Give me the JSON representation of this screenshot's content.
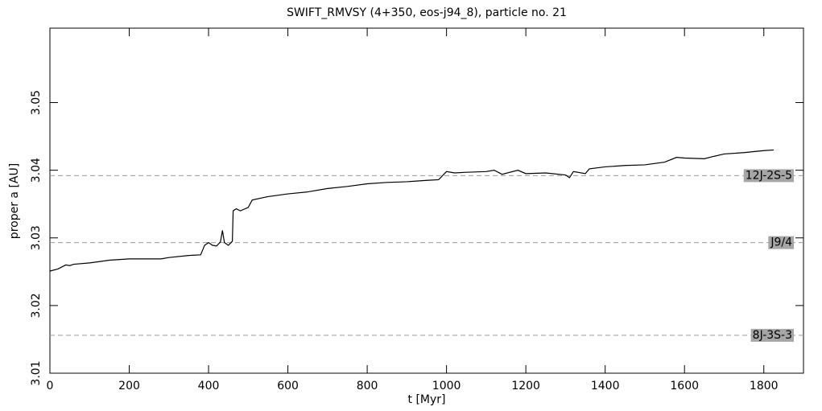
{
  "chart_data": {
    "type": "line",
    "title": "SWIFT_RMVSY (4+350, eos-j94_8), particle no. 21",
    "xlabel": "t [Myr]",
    "ylabel": "proper a [AU]",
    "x": [
      0,
      20,
      40,
      50,
      60,
      100,
      150,
      200,
      250,
      280,
      300,
      350,
      380,
      390,
      400,
      410,
      420,
      430,
      435,
      440,
      450,
      460,
      462,
      470,
      480,
      500,
      510,
      550,
      600,
      650,
      700,
      750,
      800,
      850,
      900,
      950,
      980,
      1000,
      1020,
      1050,
      1100,
      1120,
      1140,
      1180,
      1200,
      1250,
      1300,
      1310,
      1320,
      1350,
      1360,
      1400,
      1450,
      1500,
      1550,
      1580,
      1600,
      1650,
      1670,
      1700,
      1750,
      1800,
      1825
    ],
    "series": [
      {
        "color": "#000000",
        "values": [
          3.0251,
          3.0254,
          3.026,
          3.0259,
          3.0261,
          3.0263,
          3.0267,
          3.0269,
          3.0269,
          3.0269,
          3.0271,
          3.0274,
          3.0275,
          3.0289,
          3.0293,
          3.0289,
          3.0288,
          3.0294,
          3.0311,
          3.0293,
          3.0289,
          3.0295,
          3.034,
          3.0343,
          3.034,
          3.0345,
          3.0356,
          3.0361,
          3.0365,
          3.0368,
          3.0373,
          3.0376,
          3.038,
          3.0382,
          3.0383,
          3.0385,
          3.0386,
          3.0398,
          3.0396,
          3.0397,
          3.0398,
          3.04,
          3.0394,
          3.04,
          3.0395,
          3.0396,
          3.0393,
          3.0389,
          3.0398,
          3.0395,
          3.0402,
          3.0405,
          3.0407,
          3.0408,
          3.0412,
          3.0419,
          3.0418,
          3.0417,
          3.042,
          3.0424,
          3.0426,
          3.0429,
          3.043
        ]
      }
    ],
    "reference_lines": [
      {
        "label": "12J-2S-5",
        "value": 3.0392
      },
      {
        "label": "J9/4",
        "value": 3.0293
      },
      {
        "label": "8J-3S-3",
        "value": 3.0156
      }
    ],
    "xlim": [
      0,
      1900
    ],
    "ylim": [
      3.01,
      3.061
    ],
    "xticks": [
      0,
      200,
      400,
      600,
      800,
      1000,
      1200,
      1400,
      1600,
      1800
    ],
    "yticks": [
      3.01,
      3.02,
      3.03,
      3.04,
      3.05
    ]
  }
}
